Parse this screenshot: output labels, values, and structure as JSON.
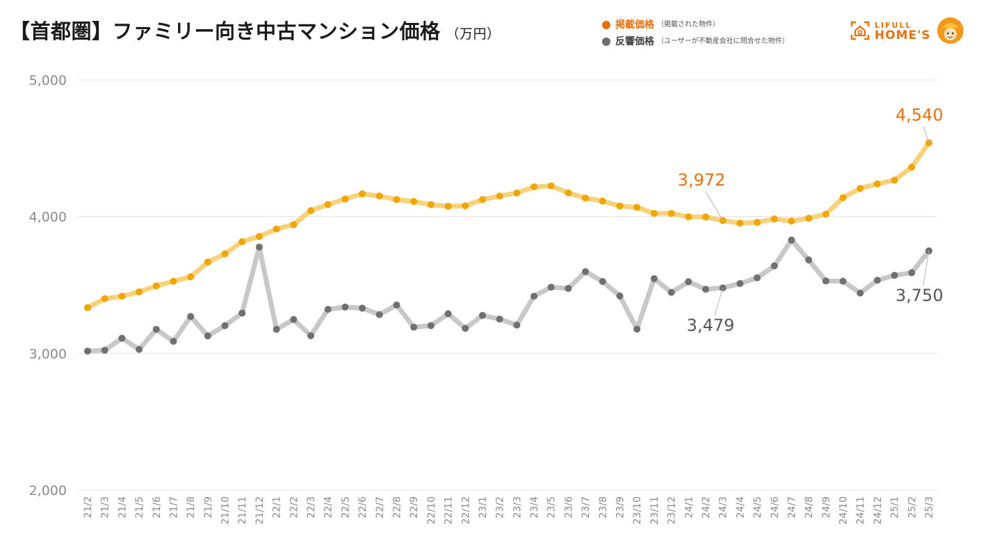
{
  "title": "【首都圏】ファミリー向き中古マンション価格",
  "unit": "（万円）",
  "legend": [
    {
      "label": "掲載価格",
      "note": "（掲載された物件）",
      "color": "#e8700a"
    },
    {
      "label": "反響価格",
      "note": "（ユーザーが不動産会社に問合せた物件）",
      "color": "#6e6e6e"
    }
  ],
  "logo": {
    "line1": "LIFULL",
    "line2": "HOME'S"
  },
  "chart_data": {
    "type": "line",
    "title": "【首都圏】ファミリー向き中古マンション価格",
    "ylabel": "（万円）",
    "ylim": [
      2000,
      5000
    ],
    "yticks": [
      2000,
      3000,
      4000,
      5000
    ],
    "ytick_labels": [
      "2,000",
      "3,000",
      "4,000",
      "5,000"
    ],
    "grid": true,
    "legend_position": "top-right",
    "categories": [
      "21/2",
      "21/3",
      "21/4",
      "21/5",
      "21/6",
      "21/7",
      "21/8",
      "21/9",
      "21/10",
      "21/11",
      "21/12",
      "22/1",
      "22/2",
      "22/3",
      "22/4",
      "22/5",
      "22/6",
      "22/7",
      "22/8",
      "22/9",
      "22/10",
      "22/11",
      "22/12",
      "23/1",
      "23/2",
      "23/3",
      "23/4",
      "23/5",
      "23/6",
      "23/7",
      "23/8",
      "23/9",
      "23/10",
      "23/11",
      "23/12",
      "24/1",
      "24/2",
      "24/3",
      "24/4",
      "24/5",
      "24/6",
      "24/7",
      "24/8",
      "24/9",
      "24/10",
      "24/11",
      "24/12",
      "25/1",
      "25/2",
      "25/3"
    ],
    "series": [
      {
        "name": "掲載価格",
        "color": "#f0a500",
        "line_color": "#f7d27a",
        "values": [
          3335,
          3400,
          3418,
          3450,
          3494,
          3528,
          3560,
          3668,
          3728,
          3817,
          3855,
          3910,
          3942,
          4044,
          4089,
          4129,
          4167,
          4151,
          4125,
          4111,
          4088,
          4076,
          4079,
          4125,
          4151,
          4173,
          4218,
          4225,
          4174,
          4136,
          4114,
          4078,
          4068,
          4024,
          4024,
          3999,
          3998,
          3972,
          3953,
          3958,
          3983,
          3968,
          3988,
          4018,
          4139,
          4207,
          4240,
          4267,
          4362,
          4540
        ]
      },
      {
        "name": "反響価格",
        "color": "#707070",
        "line_color": "#c8c8c8",
        "values": [
          3017,
          3023,
          3111,
          3029,
          3176,
          3088,
          3270,
          3128,
          3203,
          3295,
          3778,
          3176,
          3248,
          3129,
          3322,
          3339,
          3331,
          3284,
          3354,
          3192,
          3203,
          3290,
          3183,
          3278,
          3251,
          3207,
          3418,
          3484,
          3475,
          3598,
          3526,
          3420,
          3177,
          3547,
          3446,
          3524,
          3469,
          3479,
          3511,
          3553,
          3640,
          3829,
          3684,
          3530,
          3528,
          3441,
          3535,
          3571,
          3590,
          3750
        ]
      }
    ],
    "annotations": [
      {
        "series": 0,
        "index": 37,
        "label": "3,972",
        "color": "#e8700a"
      },
      {
        "series": 0,
        "index": 49,
        "label": "4,540",
        "color": "#e8700a"
      },
      {
        "series": 1,
        "index": 37,
        "label": "3,479",
        "color": "#555555"
      },
      {
        "series": 1,
        "index": 49,
        "label": "3,750",
        "color": "#555555"
      }
    ]
  }
}
